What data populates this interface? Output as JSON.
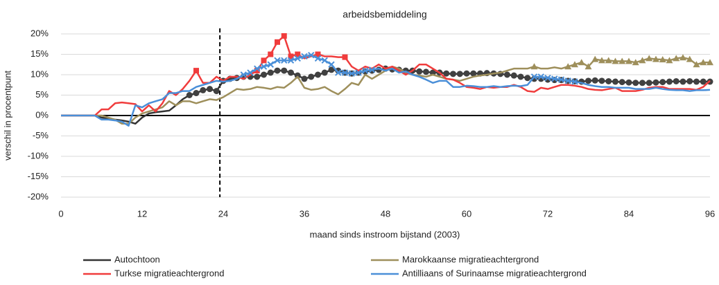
{
  "chart_data": {
    "type": "line",
    "title": "arbeidsbemiddeling",
    "x_label": "maand sinds instroom bijstand (2003)",
    "y_label": "verschil in procentpunt",
    "x": [
      0,
      1,
      2,
      3,
      4,
      5,
      6,
      7,
      8,
      9,
      10,
      11,
      12,
      13,
      14,
      15,
      16,
      17,
      18,
      19,
      20,
      21,
      22,
      23,
      24,
      25,
      26,
      27,
      28,
      29,
      30,
      31,
      32,
      33,
      34,
      35,
      36,
      37,
      38,
      39,
      40,
      41,
      42,
      43,
      44,
      45,
      46,
      47,
      48,
      49,
      50,
      51,
      52,
      53,
      54,
      55,
      56,
      57,
      58,
      59,
      60,
      61,
      62,
      63,
      64,
      65,
      66,
      67,
      68,
      69,
      70,
      71,
      72,
      73,
      74,
      75,
      76,
      77,
      78,
      79,
      80,
      81,
      82,
      83,
      84,
      85,
      86,
      87,
      88,
      89,
      90,
      91,
      92,
      93,
      94,
      95,
      96
    ],
    "xlim": [
      0,
      96
    ],
    "xticks": [
      0,
      12,
      24,
      36,
      48,
      60,
      72,
      84,
      96
    ],
    "ylim": [
      -20,
      20
    ],
    "yticks": [
      {
        "value": -20,
        "label": "-20%"
      },
      {
        "value": -15,
        "label": "-15%"
      },
      {
        "value": -10,
        "label": "-10%"
      },
      {
        "value": -5,
        "label": "-5%"
      },
      {
        "value": 0,
        "label": "0%"
      },
      {
        "value": 5,
        "label": "5%"
      },
      {
        "value": 10,
        "label": "10%"
      },
      {
        "value": 15,
        "label": "15%"
      },
      {
        "value": 20,
        "label": "20%"
      }
    ],
    "grid": true,
    "vline_x": 23.5,
    "series": [
      {
        "name": "Autochtoon",
        "color": "#333333",
        "marker": "circle",
        "values": [
          0,
          0,
          0,
          0,
          0,
          0,
          -0.5,
          -0.7,
          -1,
          -1.2,
          -1.5,
          -2,
          -0.5,
          0.5,
          0.8,
          1,
          1.2,
          2.5,
          4,
          5,
          5.5,
          6.2,
          6.5,
          6,
          8.5,
          9,
          9.2,
          9.5,
          9.5,
          9.5,
          10,
          10.5,
          11,
          11,
          10.5,
          9.8,
          9,
          9.5,
          10,
          10.5,
          11.2,
          11,
          10.5,
          10.3,
          10.5,
          10.8,
          11,
          11.2,
          11.5,
          11.3,
          11.2,
          11,
          11,
          10.8,
          10.7,
          10.5,
          10.5,
          10.3,
          10.2,
          10.2,
          10.3,
          10.3,
          10.3,
          10.4,
          10.3,
          10.2,
          10,
          9.8,
          9.5,
          9.2,
          9,
          9,
          8.8,
          8.7,
          8.7,
          8.5,
          8.4,
          8.3,
          8.5,
          8.6,
          8.5,
          8.4,
          8.3,
          8.2,
          8.1,
          8,
          8,
          8,
          8.1,
          8.2,
          8.3,
          8.4,
          8.3,
          8.4,
          8.3,
          8.3,
          8.3
        ],
        "marked": [
          false,
          false,
          false,
          false,
          false,
          false,
          false,
          false,
          false,
          false,
          false,
          false,
          false,
          false,
          false,
          false,
          false,
          false,
          false,
          true,
          true,
          true,
          true,
          true,
          true,
          true,
          true,
          true,
          true,
          true,
          true,
          true,
          true,
          true,
          true,
          true,
          true,
          true,
          true,
          true,
          true,
          true,
          true,
          true,
          true,
          true,
          true,
          true,
          true,
          true,
          true,
          true,
          true,
          true,
          true,
          true,
          true,
          true,
          true,
          true,
          true,
          true,
          true,
          true,
          true,
          true,
          true,
          true,
          true,
          true,
          true,
          true,
          true,
          true,
          true,
          true,
          true,
          true,
          true,
          true,
          true,
          true,
          true,
          true,
          true,
          true,
          true,
          true,
          true,
          true,
          true,
          true,
          true,
          true,
          true,
          true,
          true
        ]
      },
      {
        "name": "Marokkaanse migratieachtergrond",
        "color": "#9e8f5b",
        "marker": "triangle",
        "values": [
          0,
          0,
          0,
          0,
          0,
          0,
          0,
          -0.5,
          -1,
          -2,
          -2,
          -0.5,
          0.5,
          1,
          1.5,
          2,
          3.5,
          2.5,
          3.5,
          3.5,
          3,
          3.5,
          4,
          3.8,
          4.5,
          5.5,
          6.5,
          6.3,
          6.5,
          7,
          6.8,
          6.5,
          7,
          6.8,
          8,
          9.5,
          6.8,
          6.3,
          6.5,
          7,
          6,
          5.2,
          6.5,
          8,
          7.5,
          10,
          9,
          10,
          11,
          12,
          11.5,
          10.5,
          10,
          9.8,
          9.5,
          10,
          9.5,
          9,
          8.8,
          8.5,
          9,
          9.5,
          9.8,
          10,
          10.3,
          10.5,
          11,
          11.5,
          11.5,
          11.5,
          12,
          11.5,
          11.5,
          11.8,
          11.5,
          12,
          12.5,
          13,
          12,
          13.8,
          13.5,
          13.5,
          13.3,
          13.3,
          13.3,
          13,
          13.5,
          14,
          13.8,
          13.7,
          13.5,
          14,
          14.2,
          13.8,
          12.5,
          13,
          13
        ],
        "marked": [
          false,
          false,
          false,
          false,
          false,
          false,
          false,
          false,
          false,
          false,
          false,
          false,
          false,
          false,
          false,
          false,
          false,
          false,
          false,
          false,
          false,
          false,
          false,
          false,
          false,
          false,
          false,
          false,
          false,
          false,
          false,
          false,
          false,
          false,
          false,
          false,
          false,
          false,
          false,
          false,
          false,
          false,
          false,
          false,
          false,
          false,
          false,
          false,
          false,
          false,
          false,
          false,
          false,
          false,
          false,
          false,
          false,
          false,
          false,
          false,
          false,
          false,
          false,
          false,
          false,
          false,
          false,
          false,
          false,
          false,
          true,
          false,
          false,
          false,
          false,
          true,
          true,
          true,
          true,
          true,
          true,
          true,
          true,
          true,
          true,
          true,
          true,
          true,
          true,
          true,
          true,
          true,
          true,
          true,
          true,
          true,
          true
        ]
      },
      {
        "name": "Turkse migratieachtergrond",
        "color": "#f03c3c",
        "marker": "square",
        "values": [
          0,
          0,
          0,
          0,
          0,
          0,
          1.5,
          1.5,
          3,
          3.2,
          3,
          2.8,
          1,
          2.5,
          1,
          3,
          6,
          5,
          6.5,
          8.5,
          11,
          8,
          8,
          9.5,
          8.5,
          9.5,
          9.5,
          9,
          10,
          11,
          13.5,
          15,
          18,
          19.5,
          14.5,
          15,
          14,
          14.5,
          15,
          14.5,
          14.5,
          14.3,
          14.3,
          12,
          11,
          12,
          11.5,
          12.5,
          11.5,
          12,
          11,
          10,
          11,
          12.5,
          12.5,
          11.5,
          10.5,
          9,
          8.8,
          8,
          7,
          6.8,
          6.5,
          7,
          6.8,
          7,
          7,
          7.5,
          7,
          6,
          5.8,
          6.8,
          6.5,
          7,
          7.5,
          7.5,
          7.3,
          7,
          6.5,
          6.3,
          6.2,
          6.5,
          6.8,
          6,
          6,
          6,
          6.3,
          6.8,
          7,
          7,
          6.5,
          6.5,
          6.5,
          6.5,
          6.3,
          7,
          8.5
        ],
        "marked": [
          false,
          false,
          false,
          false,
          false,
          false,
          false,
          false,
          false,
          false,
          false,
          false,
          false,
          false,
          false,
          false,
          false,
          false,
          false,
          false,
          true,
          false,
          false,
          false,
          false,
          false,
          false,
          false,
          false,
          true,
          true,
          true,
          true,
          true,
          true,
          true,
          false,
          false,
          true,
          false,
          false,
          false,
          true,
          false,
          false,
          false,
          false,
          false,
          false,
          false,
          false,
          false,
          false,
          false,
          false,
          false,
          false,
          false,
          false,
          false,
          false,
          false,
          false,
          false,
          false,
          false,
          false,
          false,
          false,
          false,
          false,
          false,
          false,
          false,
          false,
          false,
          false,
          false,
          false,
          false,
          false,
          false,
          false,
          false,
          false,
          false,
          false,
          false,
          false,
          false,
          false,
          false,
          false,
          false,
          false,
          false,
          false
        ]
      },
      {
        "name": "Antilliaans of Surinaamse migratieachtergrond",
        "color": "#4a8fd8",
        "marker": "cross",
        "values": [
          0,
          0,
          0,
          0,
          0,
          0,
          -1,
          -1,
          -1.2,
          -1.5,
          -2.5,
          2.5,
          2,
          3,
          3.5,
          4,
          5.5,
          5.5,
          6,
          6,
          7,
          7.5,
          8,
          8.5,
          8.3,
          8.5,
          9,
          10,
          10.5,
          11.5,
          12,
          12.5,
          13.5,
          13.5,
          13.5,
          14,
          14.5,
          14.8,
          14,
          13.5,
          12.5,
          10.5,
          10.5,
          10.3,
          10.5,
          11,
          11.2,
          11.5,
          11,
          11.5,
          10.5,
          10.8,
          10,
          9.5,
          8.8,
          8,
          8.5,
          8.5,
          7,
          7,
          7.3,
          7.2,
          7,
          7,
          7.2,
          7,
          7.2,
          7.3,
          7.2,
          7.5,
          9.5,
          9.5,
          9.2,
          9,
          8.8,
          8.5,
          8.3,
          8,
          7.5,
          7.2,
          7,
          7,
          6.8,
          6.8,
          6.8,
          6.5,
          6.5,
          6.5,
          6.8,
          6.5,
          6.3,
          6.2,
          6.2,
          6,
          6.2,
          6.2,
          6.3
        ],
        "marked": [
          false,
          false,
          false,
          false,
          false,
          false,
          false,
          false,
          false,
          false,
          false,
          false,
          false,
          false,
          false,
          false,
          false,
          false,
          false,
          false,
          false,
          false,
          false,
          false,
          false,
          false,
          false,
          true,
          true,
          true,
          true,
          true,
          true,
          true,
          true,
          true,
          true,
          true,
          true,
          true,
          true,
          true,
          true,
          true,
          true,
          true,
          true,
          false,
          false,
          false,
          false,
          false,
          false,
          false,
          false,
          false,
          false,
          false,
          false,
          false,
          false,
          false,
          false,
          false,
          false,
          false,
          false,
          false,
          false,
          false,
          true,
          true,
          true,
          true,
          true,
          true,
          true,
          false,
          false,
          false,
          false,
          false,
          false,
          false,
          false,
          false,
          false,
          false,
          false,
          false,
          false,
          false,
          false,
          false,
          false,
          false,
          false
        ]
      }
    ]
  }
}
